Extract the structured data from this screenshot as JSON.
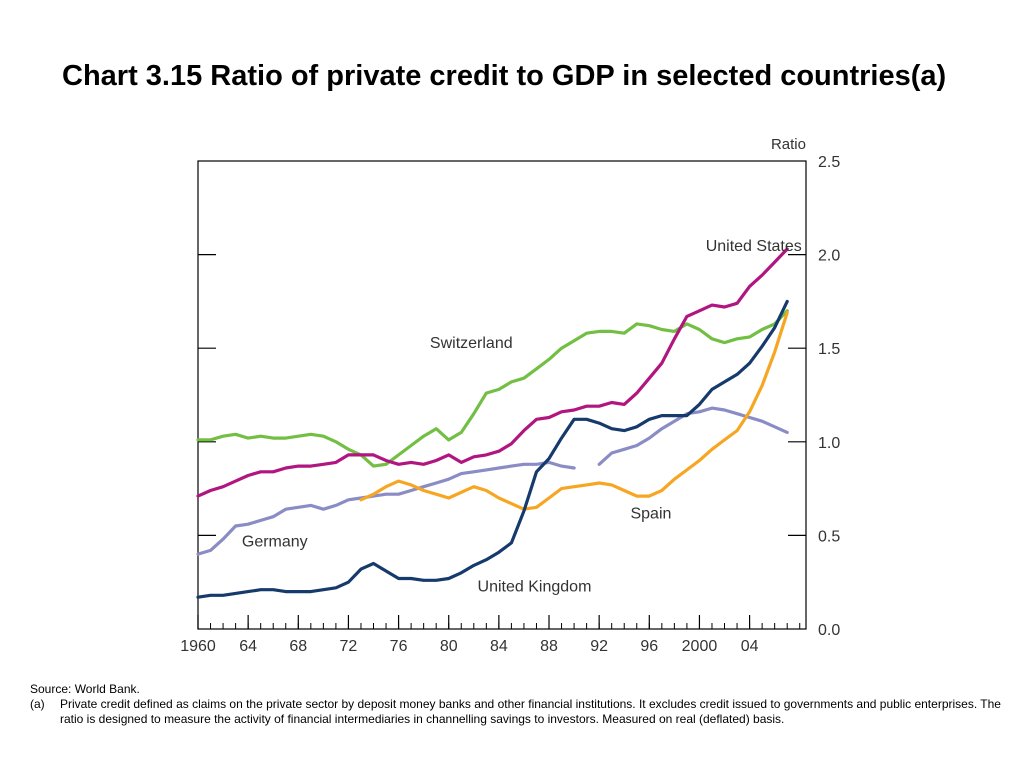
{
  "title": "Chart 3.15 Ratio of private credit to GDP in selected countries(a)",
  "chart_data": {
    "type": "line",
    "ylabel": "Ratio",
    "ylim": [
      0,
      2.5
    ],
    "y_ticks": [
      "0.0",
      "0.5",
      "1.0",
      "1.5",
      "2.0",
      "2.5"
    ],
    "xlim": [
      1960,
      2008.5
    ],
    "x_ticks": [
      {
        "value": 1960,
        "label": "1960"
      },
      {
        "value": 1964,
        "label": "64"
      },
      {
        "value": 1968,
        "label": "68"
      },
      {
        "value": 1972,
        "label": "72"
      },
      {
        "value": 1976,
        "label": "76"
      },
      {
        "value": 1980,
        "label": "80"
      },
      {
        "value": 1984,
        "label": "84"
      },
      {
        "value": 1988,
        "label": "88"
      },
      {
        "value": 1992,
        "label": "92"
      },
      {
        "value": 1996,
        "label": "96"
      },
      {
        "value": 2000,
        "label": "2000"
      },
      {
        "value": 2004,
        "label": "04"
      }
    ],
    "grid": false,
    "series": [
      {
        "name": "Switzerland",
        "color": "#72bf44",
        "label_pos": [
          1978.5,
          1.5
        ],
        "points": [
          [
            1960,
            1.01
          ],
          [
            1961,
            1.01
          ],
          [
            1962,
            1.03
          ],
          [
            1963,
            1.04
          ],
          [
            1964,
            1.02
          ],
          [
            1965,
            1.03
          ],
          [
            1966,
            1.02
          ],
          [
            1967,
            1.02
          ],
          [
            1968,
            1.03
          ],
          [
            1969,
            1.04
          ],
          [
            1970,
            1.03
          ],
          [
            1971,
            1.0
          ],
          [
            1972,
            0.96
          ],
          [
            1973,
            0.93
          ],
          [
            1974,
            0.87
          ],
          [
            1975,
            0.88
          ],
          [
            1976,
            0.93
          ],
          [
            1977,
            0.98
          ],
          [
            1978,
            1.03
          ],
          [
            1979,
            1.07
          ],
          [
            1980,
            1.01
          ],
          [
            1981,
            1.05
          ],
          [
            1982,
            1.15
          ],
          [
            1983,
            1.26
          ],
          [
            1984,
            1.28
          ],
          [
            1985,
            1.32
          ],
          [
            1986,
            1.34
          ],
          [
            1987,
            1.39
          ],
          [
            1988,
            1.44
          ],
          [
            1989,
            1.5
          ],
          [
            1990,
            1.54
          ],
          [
            1991,
            1.58
          ],
          [
            1992,
            1.59
          ],
          [
            1993,
            1.59
          ],
          [
            1994,
            1.58
          ],
          [
            1995,
            1.63
          ],
          [
            1996,
            1.62
          ],
          [
            1997,
            1.6
          ],
          [
            1998,
            1.59
          ],
          [
            1999,
            1.63
          ],
          [
            2000,
            1.6
          ],
          [
            2001,
            1.55
          ],
          [
            2002,
            1.53
          ],
          [
            2003,
            1.55
          ],
          [
            2004,
            1.56
          ],
          [
            2005,
            1.6
          ],
          [
            2006,
            1.63
          ],
          [
            2007,
            1.7
          ]
        ]
      },
      {
        "name": "United States",
        "color": "#b1157f",
        "label_pos": [
          2000.5,
          2.02
        ],
        "points": [
          [
            1960,
            0.71
          ],
          [
            1961,
            0.74
          ],
          [
            1962,
            0.76
          ],
          [
            1963,
            0.79
          ],
          [
            1964,
            0.82
          ],
          [
            1965,
            0.84
          ],
          [
            1966,
            0.84
          ],
          [
            1967,
            0.86
          ],
          [
            1968,
            0.87
          ],
          [
            1969,
            0.87
          ],
          [
            1970,
            0.88
          ],
          [
            1971,
            0.89
          ],
          [
            1972,
            0.93
          ],
          [
            1973,
            0.93
          ],
          [
            1974,
            0.93
          ],
          [
            1975,
            0.9
          ],
          [
            1976,
            0.88
          ],
          [
            1977,
            0.89
          ],
          [
            1978,
            0.88
          ],
          [
            1979,
            0.9
          ],
          [
            1980,
            0.93
          ],
          [
            1981,
            0.89
          ],
          [
            1982,
            0.92
          ],
          [
            1983,
            0.93
          ],
          [
            1984,
            0.95
          ],
          [
            1985,
            0.99
          ],
          [
            1986,
            1.06
          ],
          [
            1987,
            1.12
          ],
          [
            1988,
            1.13
          ],
          [
            1989,
            1.16
          ],
          [
            1990,
            1.17
          ],
          [
            1991,
            1.19
          ],
          [
            1992,
            1.19
          ],
          [
            1993,
            1.21
          ],
          [
            1994,
            1.2
          ],
          [
            1995,
            1.26
          ],
          [
            1996,
            1.34
          ],
          [
            1997,
            1.42
          ],
          [
            1998,
            1.55
          ],
          [
            1999,
            1.67
          ],
          [
            2000,
            1.7
          ],
          [
            2001,
            1.73
          ],
          [
            2002,
            1.72
          ],
          [
            2003,
            1.74
          ],
          [
            2004,
            1.83
          ],
          [
            2005,
            1.89
          ],
          [
            2006,
            1.96
          ],
          [
            2007,
            2.03
          ]
        ]
      },
      {
        "name": "Germany",
        "color": "#8a8cc5",
        "label_pos": [
          1963.5,
          0.44
        ],
        "points": [
          [
            1960,
            0.4
          ],
          [
            1961,
            0.42
          ],
          [
            1962,
            0.48
          ],
          [
            1963,
            0.55
          ],
          [
            1964,
            0.56
          ],
          [
            1965,
            0.58
          ],
          [
            1966,
            0.6
          ],
          [
            1967,
            0.64
          ],
          [
            1968,
            0.65
          ],
          [
            1969,
            0.66
          ],
          [
            1970,
            0.64
          ],
          [
            1971,
            0.66
          ],
          [
            1972,
            0.69
          ],
          [
            1973,
            0.7
          ],
          [
            1974,
            0.71
          ],
          [
            1975,
            0.72
          ],
          [
            1976,
            0.72
          ],
          [
            1977,
            0.74
          ],
          [
            1978,
            0.76
          ],
          [
            1979,
            0.78
          ],
          [
            1980,
            0.8
          ],
          [
            1981,
            0.83
          ],
          [
            1982,
            0.84
          ],
          [
            1983,
            0.85
          ],
          [
            1984,
            0.86
          ],
          [
            1985,
            0.87
          ],
          [
            1986,
            0.88
          ],
          [
            1987,
            0.88
          ],
          [
            1988,
            0.89
          ],
          [
            1989,
            0.87
          ],
          [
            1990,
            0.86
          ],
          null,
          [
            1992,
            0.88
          ],
          [
            1993,
            0.94
          ],
          [
            1994,
            0.96
          ],
          [
            1995,
            0.98
          ],
          [
            1996,
            1.02
          ],
          [
            1997,
            1.07
          ],
          [
            1998,
            1.11
          ],
          [
            1999,
            1.15
          ],
          [
            2000,
            1.16
          ],
          [
            2001,
            1.18
          ],
          [
            2002,
            1.17
          ],
          [
            2003,
            1.15
          ],
          [
            2004,
            1.13
          ],
          [
            2005,
            1.11
          ],
          [
            2006,
            1.08
          ],
          [
            2007,
            1.05
          ]
        ]
      },
      {
        "name": "Spain",
        "color": "#f6a623",
        "label_pos": [
          1994.5,
          0.59
        ],
        "points": [
          [
            1973,
            0.69
          ],
          [
            1974,
            0.72
          ],
          [
            1975,
            0.76
          ],
          [
            1976,
            0.79
          ],
          [
            1977,
            0.77
          ],
          [
            1978,
            0.74
          ],
          [
            1979,
            0.72
          ],
          [
            1980,
            0.7
          ],
          [
            1981,
            0.73
          ],
          [
            1982,
            0.76
          ],
          [
            1983,
            0.74
          ],
          [
            1984,
            0.7
          ],
          [
            1985,
            0.67
          ],
          [
            1986,
            0.64
          ],
          [
            1987,
            0.65
          ],
          [
            1988,
            0.7
          ],
          [
            1989,
            0.75
          ],
          [
            1990,
            0.76
          ],
          [
            1991,
            0.77
          ],
          [
            1992,
            0.78
          ],
          [
            1993,
            0.77
          ],
          [
            1994,
            0.74
          ],
          [
            1995,
            0.71
          ],
          [
            1996,
            0.71
          ],
          [
            1997,
            0.74
          ],
          [
            1998,
            0.8
          ],
          [
            1999,
            0.85
          ],
          [
            2000,
            0.9
          ],
          [
            2001,
            0.96
          ],
          [
            2002,
            1.01
          ],
          [
            2003,
            1.06
          ],
          [
            2004,
            1.16
          ],
          [
            2005,
            1.3
          ],
          [
            2006,
            1.48
          ],
          [
            2007,
            1.69
          ]
        ]
      },
      {
        "name": "United Kingdom",
        "color": "#163a6b",
        "label_pos": [
          1982.3,
          0.2
        ],
        "points": [
          [
            1960,
            0.17
          ],
          [
            1961,
            0.18
          ],
          [
            1962,
            0.18
          ],
          [
            1963,
            0.19
          ],
          [
            1964,
            0.2
          ],
          [
            1965,
            0.21
          ],
          [
            1966,
            0.21
          ],
          [
            1967,
            0.2
          ],
          [
            1968,
            0.2
          ],
          [
            1969,
            0.2
          ],
          [
            1970,
            0.21
          ],
          [
            1971,
            0.22
          ],
          [
            1972,
            0.25
          ],
          [
            1973,
            0.32
          ],
          [
            1974,
            0.35
          ],
          [
            1975,
            0.31
          ],
          [
            1976,
            0.27
          ],
          [
            1977,
            0.27
          ],
          [
            1978,
            0.26
          ],
          [
            1979,
            0.26
          ],
          [
            1980,
            0.27
          ],
          [
            1981,
            0.3
          ],
          [
            1982,
            0.34
          ],
          [
            1983,
            0.37
          ],
          [
            1984,
            0.41
          ],
          [
            1985,
            0.46
          ],
          [
            1986,
            0.63
          ],
          [
            1987,
            0.84
          ],
          [
            1988,
            0.91
          ],
          [
            1989,
            1.02
          ],
          [
            1990,
            1.12
          ],
          [
            1991,
            1.12
          ],
          [
            1992,
            1.1
          ],
          [
            1993,
            1.07
          ],
          [
            1994,
            1.06
          ],
          [
            1995,
            1.08
          ],
          [
            1996,
            1.12
          ],
          [
            1997,
            1.14
          ],
          [
            1998,
            1.14
          ],
          [
            1999,
            1.14
          ],
          [
            2000,
            1.2
          ],
          [
            2001,
            1.28
          ],
          [
            2002,
            1.32
          ],
          [
            2003,
            1.36
          ],
          [
            2004,
            1.42
          ],
          [
            2005,
            1.51
          ],
          [
            2006,
            1.61
          ],
          [
            2007,
            1.75
          ]
        ]
      }
    ]
  },
  "footnotes": {
    "source": "Source:  World Bank.",
    "note_key": "(a)",
    "note_text": "Private credit defined as claims on the private sector by deposit money banks and other financial institutions.  It excludes credit issued to governments and public enterprises.  The ratio is designed to measure the activity of financial intermediaries in channelling savings to investors.  Measured on real (deflated) basis."
  }
}
